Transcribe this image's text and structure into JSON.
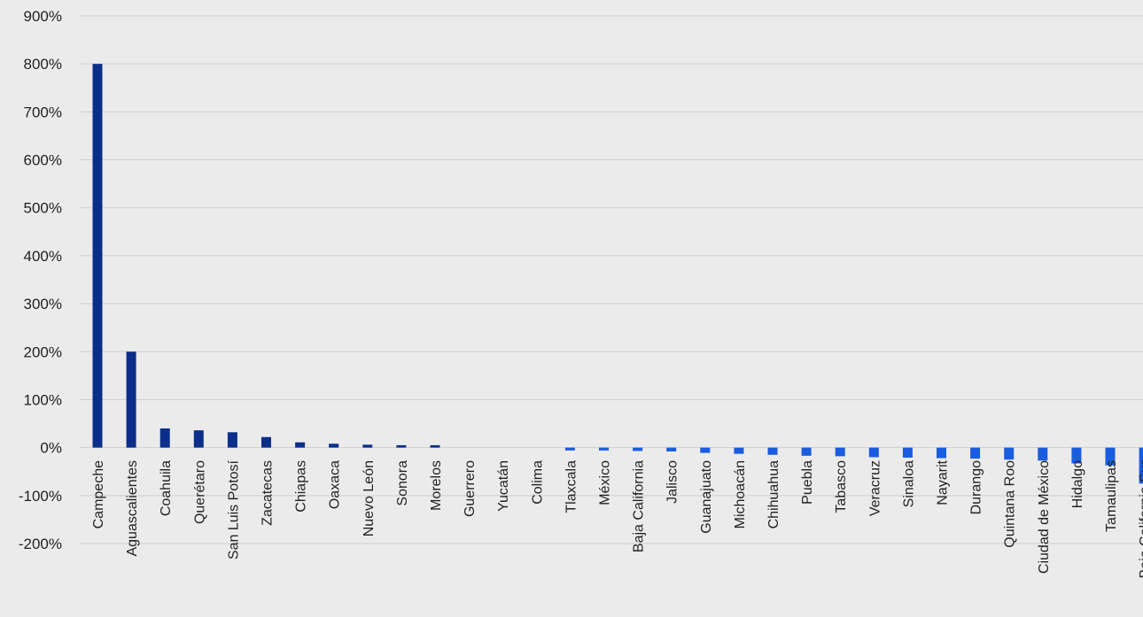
{
  "chart_data": {
    "type": "bar",
    "title": "",
    "xlabel": "",
    "ylabel": "",
    "ylim": [
      -200,
      900
    ],
    "y_ticks": [
      "900%",
      "800%",
      "700%",
      "600%",
      "500%",
      "400%",
      "300%",
      "200%",
      "100%",
      "0%",
      "-100%",
      "-200%"
    ],
    "y_tick_values": [
      900,
      800,
      700,
      600,
      500,
      400,
      300,
      200,
      100,
      0,
      -100,
      -200
    ],
    "grid": true,
    "legend": "none",
    "colors": {
      "positive": "#0b2e8a",
      "negative": "#1a5ce0",
      "grid": "#cfcfcf",
      "background": "#ebebeb"
    },
    "categories": [
      "Campeche",
      "Aguascalientes",
      "Coahuila",
      "Querétaro",
      "San Luis Potosí",
      "Zacatecas",
      "Chiapas",
      "Oaxaca",
      "Nuevo León",
      "Sonora",
      "Morelos",
      "Guerrero",
      "Yucatán",
      "Colima",
      "Tlaxcala",
      "México",
      "Baja California",
      "Jalisco",
      "Guanajuato",
      "Michoacán",
      "Chihuahua",
      "Puebla",
      "Tabasco",
      "Veracruz",
      "Sinaloa",
      "Nayarit",
      "Durango",
      "Quintana Roo",
      "Ciudad de México",
      "Hidalgo",
      "Tamaulipas",
      "Baja California Sur"
    ],
    "values": [
      800,
      200,
      40,
      36,
      32,
      22,
      11,
      8,
      6,
      5,
      5,
      0,
      0,
      0,
      -6,
      -6,
      -7,
      -8,
      -11,
      -13,
      -15,
      -17,
      -18,
      -20,
      -21,
      -22,
      -23,
      -25,
      -27,
      -33,
      -37,
      -75
    ]
  }
}
